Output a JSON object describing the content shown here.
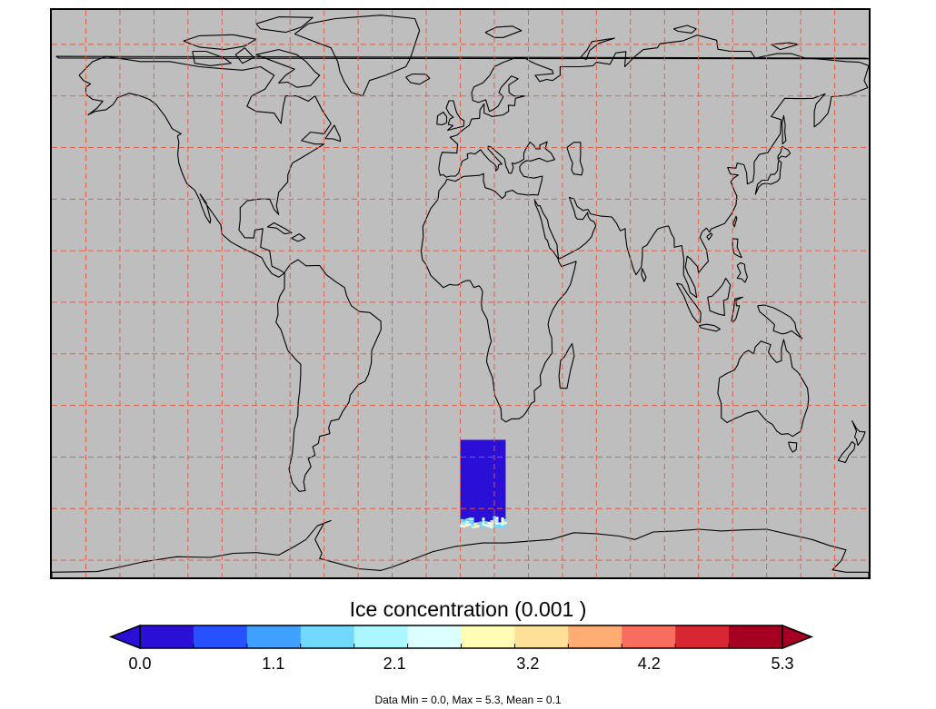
{
  "map": {
    "background_color": "#bebebe",
    "coastline_color": "#000000",
    "graticule_color": "#e8553c",
    "graticule_style": "dashed",
    "projection": "equirectangular"
  },
  "data_field": {
    "region_lon": [
      0,
      20
    ],
    "region_lat": [
      -65,
      -40
    ],
    "dominant_color": "#2a0fd6",
    "edge_colors": [
      "#a8f5ff",
      "#dcffff",
      "#6fd8ff",
      "#ffffff",
      "#fff9b8"
    ]
  },
  "colorbar": {
    "title": "Ice concentration (0.001 )",
    "min": 0.0,
    "max": 5.3,
    "extend": "both",
    "colors": [
      "#2a0fd6",
      "#2750ff",
      "#3fa0ff",
      "#72d8ff",
      "#aaf7ff",
      "#dcffff",
      "#fffcb6",
      "#ffe099",
      "#ffad72",
      "#f96d5e",
      "#d82632",
      "#a50021"
    ],
    "tick_labels": [
      "0.0",
      "1.1",
      "2.1",
      "3.2",
      "4.2",
      "5.3"
    ],
    "minor_ticks": 12
  },
  "stats_text": "Data Min = 0.0, Max = 5.3, Mean = 0.1"
}
